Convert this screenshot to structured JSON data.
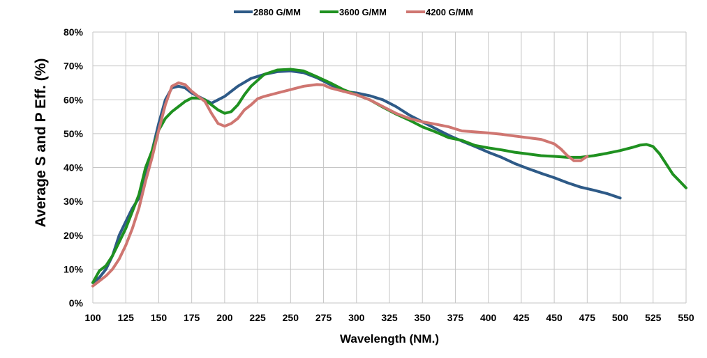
{
  "chart_data": {
    "type": "line",
    "title": "",
    "xlabel": "Wavelength (NM.)",
    "ylabel": "Average S and P Eff. (%)",
    "xlim": [
      100,
      550
    ],
    "ylim": [
      0,
      80
    ],
    "x_ticks": [
      "100",
      "125",
      "150",
      "175",
      "200",
      "225",
      "250",
      "275",
      "300",
      "325",
      "350",
      "375",
      "400",
      "425",
      "450",
      "475",
      "500",
      "525",
      "550"
    ],
    "y_ticks": [
      "0%",
      "10%",
      "20%",
      "30%",
      "40%",
      "50%",
      "60%",
      "70%",
      "80%"
    ],
    "grid": true,
    "legend_position": "top-center",
    "series": [
      {
        "name": "2880 G/MM",
        "color": "#2e5a87",
        "points": [
          [
            100,
            6
          ],
          [
            105,
            7.5
          ],
          [
            110,
            10
          ],
          [
            115,
            14
          ],
          [
            120,
            20
          ],
          [
            125,
            24
          ],
          [
            130,
            28
          ],
          [
            135,
            31
          ],
          [
            140,
            38
          ],
          [
            145,
            45
          ],
          [
            150,
            53
          ],
          [
            155,
            60
          ],
          [
            160,
            63.5
          ],
          [
            165,
            64
          ],
          [
            170,
            63.5
          ],
          [
            175,
            62
          ],
          [
            180,
            61
          ],
          [
            185,
            60
          ],
          [
            190,
            59
          ],
          [
            195,
            60
          ],
          [
            200,
            61
          ],
          [
            210,
            64
          ],
          [
            220,
            66.3
          ],
          [
            230,
            67.5
          ],
          [
            240,
            68.3
          ],
          [
            250,
            68.5
          ],
          [
            260,
            68
          ],
          [
            270,
            66.5
          ],
          [
            280,
            64.5
          ],
          [
            290,
            62.5
          ],
          [
            300,
            62
          ],
          [
            310,
            61.2
          ],
          [
            320,
            60
          ],
          [
            330,
            58
          ],
          [
            340,
            55.5
          ],
          [
            350,
            53.5
          ],
          [
            360,
            51.5
          ],
          [
            370,
            49.5
          ],
          [
            380,
            47.8
          ],
          [
            390,
            46.2
          ],
          [
            400,
            44.5
          ],
          [
            410,
            43
          ],
          [
            420,
            41.2
          ],
          [
            430,
            39.7
          ],
          [
            440,
            38.3
          ],
          [
            450,
            37
          ],
          [
            460,
            35.5
          ],
          [
            470,
            34.2
          ],
          [
            480,
            33.3
          ],
          [
            490,
            32.3
          ],
          [
            500,
            31
          ]
        ]
      },
      {
        "name": "3600 G/MM",
        "color": "#1f9120",
        "points": [
          [
            100,
            6
          ],
          [
            105,
            9.5
          ],
          [
            110,
            11
          ],
          [
            115,
            14
          ],
          [
            120,
            18
          ],
          [
            125,
            22
          ],
          [
            130,
            27
          ],
          [
            135,
            32
          ],
          [
            140,
            40
          ],
          [
            145,
            45
          ],
          [
            150,
            51
          ],
          [
            155,
            54.5
          ],
          [
            160,
            56.5
          ],
          [
            165,
            58
          ],
          [
            170,
            59.5
          ],
          [
            175,
            60.5
          ],
          [
            180,
            60.5
          ],
          [
            185,
            60
          ],
          [
            190,
            58.5
          ],
          [
            195,
            57
          ],
          [
            200,
            56
          ],
          [
            205,
            56.5
          ],
          [
            210,
            58.5
          ],
          [
            215,
            61.5
          ],
          [
            220,
            64
          ],
          [
            230,
            67.5
          ],
          [
            240,
            68.8
          ],
          [
            250,
            69
          ],
          [
            260,
            68.5
          ],
          [
            270,
            66.8
          ],
          [
            280,
            65
          ],
          [
            290,
            63
          ],
          [
            300,
            61.5
          ],
          [
            310,
            60
          ],
          [
            320,
            57.8
          ],
          [
            330,
            55.8
          ],
          [
            340,
            54
          ],
          [
            350,
            52
          ],
          [
            360,
            50.5
          ],
          [
            370,
            48.8
          ],
          [
            380,
            48
          ],
          [
            390,
            46.5
          ],
          [
            400,
            45.8
          ],
          [
            410,
            45.2
          ],
          [
            420,
            44.5
          ],
          [
            430,
            44
          ],
          [
            440,
            43.5
          ],
          [
            450,
            43.3
          ],
          [
            460,
            43
          ],
          [
            470,
            43
          ],
          [
            480,
            43.5
          ],
          [
            490,
            44.2
          ],
          [
            500,
            45
          ],
          [
            510,
            46
          ],
          [
            515,
            46.6
          ],
          [
            520,
            46.8
          ],
          [
            525,
            46.2
          ],
          [
            530,
            44
          ],
          [
            535,
            41
          ],
          [
            540,
            38
          ],
          [
            545,
            36
          ],
          [
            550,
            34
          ]
        ]
      },
      {
        "name": "4200 G/MM",
        "color": "#cf7671",
        "points": [
          [
            100,
            5
          ],
          [
            105,
            6.5
          ],
          [
            110,
            8
          ],
          [
            115,
            10
          ],
          [
            120,
            13
          ],
          [
            125,
            17
          ],
          [
            130,
            22
          ],
          [
            135,
            28
          ],
          [
            140,
            36
          ],
          [
            145,
            43
          ],
          [
            150,
            51
          ],
          [
            155,
            58.5
          ],
          [
            160,
            64
          ],
          [
            165,
            65
          ],
          [
            170,
            64.5
          ],
          [
            175,
            62.5
          ],
          [
            180,
            61
          ],
          [
            185,
            59.5
          ],
          [
            190,
            56
          ],
          [
            195,
            53
          ],
          [
            200,
            52.2
          ],
          [
            205,
            53
          ],
          [
            210,
            54.5
          ],
          [
            215,
            57
          ],
          [
            220,
            58.5
          ],
          [
            225,
            60.3
          ],
          [
            230,
            61
          ],
          [
            240,
            62
          ],
          [
            250,
            63
          ],
          [
            260,
            64
          ],
          [
            270,
            64.5
          ],
          [
            275,
            64.4
          ],
          [
            280,
            63.5
          ],
          [
            290,
            62.5
          ],
          [
            300,
            61.5
          ],
          [
            310,
            60
          ],
          [
            320,
            58
          ],
          [
            330,
            56
          ],
          [
            340,
            54.5
          ],
          [
            350,
            53.5
          ],
          [
            360,
            52.8
          ],
          [
            370,
            52
          ],
          [
            380,
            50.8
          ],
          [
            390,
            50.5
          ],
          [
            400,
            50.2
          ],
          [
            410,
            49.8
          ],
          [
            420,
            49.3
          ],
          [
            430,
            48.8
          ],
          [
            440,
            48.3
          ],
          [
            450,
            47
          ],
          [
            455,
            45.5
          ],
          [
            460,
            43.5
          ],
          [
            465,
            42
          ],
          [
            470,
            42
          ],
          [
            475,
            43.3
          ]
        ]
      }
    ]
  }
}
